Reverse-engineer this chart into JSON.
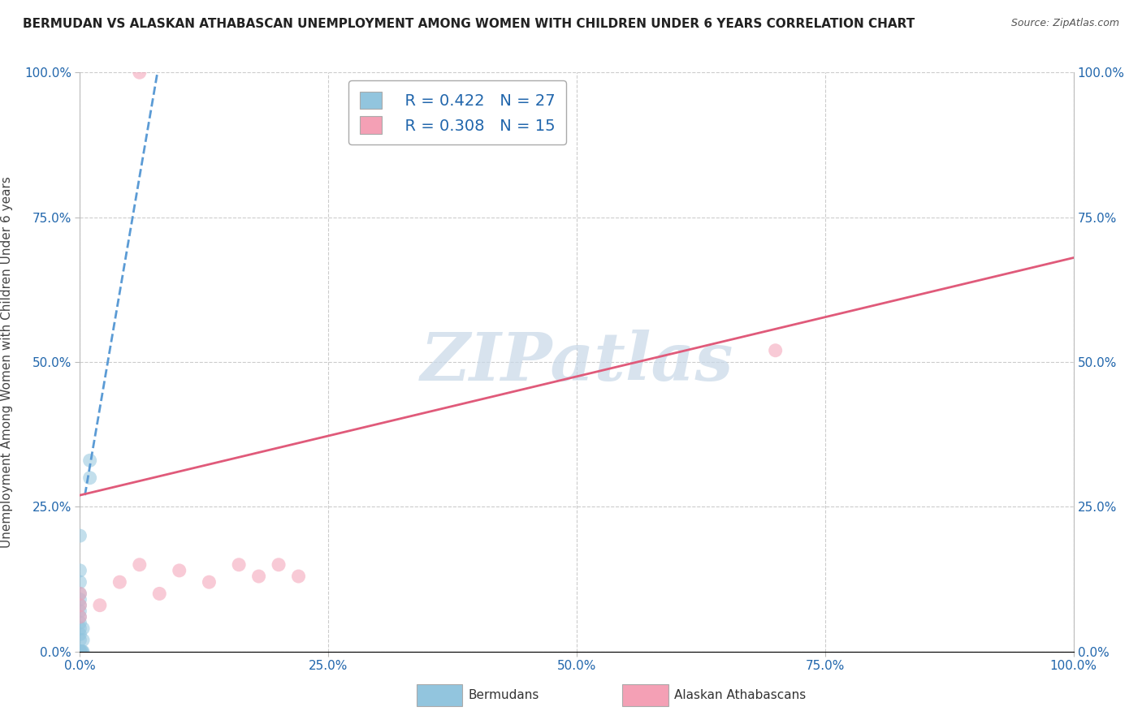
{
  "title": "BERMUDAN VS ALASKAN ATHABASCAN UNEMPLOYMENT AMONG WOMEN WITH CHILDREN UNDER 6 YEARS CORRELATION CHART",
  "source": "Source: ZipAtlas.com",
  "ylabel": "Unemployment Among Women with Children Under 6 years",
  "xlim": [
    0,
    1
  ],
  "ylim": [
    0,
    1
  ],
  "xticks": [
    0,
    0.25,
    0.5,
    0.75,
    1.0
  ],
  "yticks": [
    0,
    0.25,
    0.5,
    0.75,
    1.0
  ],
  "tick_labels": [
    "0.0%",
    "25.0%",
    "50.0%",
    "75.0%",
    "100.0%"
  ],
  "blue_label": "Bermudans",
  "pink_label": "Alaskan Athabascans",
  "blue_R": 0.422,
  "blue_N": 27,
  "pink_R": 0.308,
  "pink_N": 15,
  "blue_color": "#92c5de",
  "pink_color": "#f4a0b5",
  "blue_line_color": "#5b9bd5",
  "pink_line_color": "#e05a7a",
  "legend_R_color": "#2166ac",
  "legend_N_color": "#2166ac",
  "axis_label_color": "#2166ac",
  "watermark_text": "ZIPatlas",
  "watermark_color": "#c8d8e8",
  "blue_scatter_x": [
    0.0,
    0.0,
    0.0,
    0.0,
    0.0,
    0.0,
    0.0,
    0.0,
    0.0,
    0.0,
    0.0,
    0.0,
    0.0,
    0.0,
    0.0,
    0.0,
    0.0,
    0.0,
    0.0,
    0.0,
    0.002,
    0.002,
    0.003,
    0.003,
    0.003,
    0.01,
    0.01
  ],
  "blue_scatter_y": [
    0.0,
    0.0,
    0.0,
    0.0,
    0.0,
    0.0,
    0.0,
    0.0,
    0.02,
    0.03,
    0.04,
    0.05,
    0.06,
    0.07,
    0.08,
    0.09,
    0.1,
    0.12,
    0.14,
    0.2,
    0.0,
    0.0,
    0.0,
    0.02,
    0.04,
    0.3,
    0.33
  ],
  "pink_scatter_x": [
    0.0,
    0.0,
    0.0,
    0.02,
    0.04,
    0.06,
    0.08,
    0.1,
    0.13,
    0.16,
    0.18,
    0.2,
    0.22,
    0.7,
    0.06
  ],
  "pink_scatter_y": [
    0.06,
    0.08,
    0.1,
    0.08,
    0.12,
    0.15,
    0.1,
    0.14,
    0.12,
    0.15,
    0.13,
    0.15,
    0.13,
    0.52,
    1.0
  ],
  "blue_trend_x": [
    0.005,
    0.08
  ],
  "blue_trend_y": [
    0.27,
    1.02
  ],
  "pink_trend_x": [
    0.0,
    1.0
  ],
  "pink_trend_y": [
    0.27,
    0.68
  ]
}
